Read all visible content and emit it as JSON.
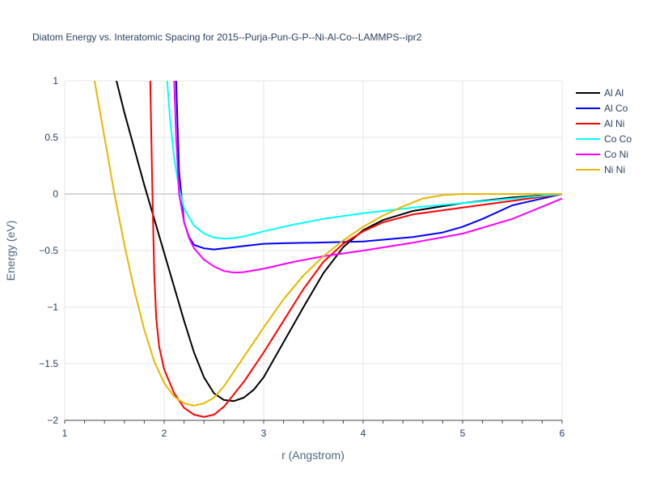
{
  "chart_data": {
    "type": "line",
    "title": "Diatom Energy vs. Interatomic Spacing for 2015--Purja-Pun-G-P--Ni-Al-Co--LAMMPS--ipr2",
    "xlabel": "r (Angstrom)",
    "ylabel": "Energy (eV)",
    "xlim": [
      1,
      6
    ],
    "ylim": [
      -2,
      1
    ],
    "xticks": [
      1,
      2,
      3,
      4,
      5,
      6
    ],
    "xtick_labels": [
      "1",
      "2",
      "3",
      "4",
      "5",
      "6"
    ],
    "yticks": [
      -2,
      -1.5,
      -1,
      -0.5,
      0,
      0.5,
      1
    ],
    "ytick_labels": [
      "−2",
      "−1.5",
      "−1",
      "−0.5",
      "0",
      "0.5",
      "1"
    ],
    "grid": true,
    "legend_position": "top-right",
    "series": [
      {
        "name": "Al Al",
        "color": "#000000",
        "x": [
          1.52,
          1.6,
          1.7,
          1.8,
          1.9,
          2.0,
          2.1,
          2.2,
          2.3,
          2.4,
          2.5,
          2.6,
          2.7,
          2.8,
          2.9,
          3.0,
          3.2,
          3.4,
          3.6,
          3.8,
          4.0,
          4.2,
          4.5,
          5.0,
          5.5,
          6.0
        ],
        "y": [
          1.0,
          0.72,
          0.4,
          0.08,
          -0.22,
          -0.52,
          -0.82,
          -1.12,
          -1.4,
          -1.62,
          -1.76,
          -1.82,
          -1.83,
          -1.8,
          -1.73,
          -1.62,
          -1.31,
          -1.0,
          -0.7,
          -0.47,
          -0.32,
          -0.23,
          -0.15,
          -0.08,
          -0.03,
          0.0
        ]
      },
      {
        "name": "Al Co",
        "color": "#0000ff",
        "x": [
          2.12,
          2.15,
          2.2,
          2.25,
          2.3,
          2.4,
          2.5,
          2.6,
          2.8,
          3.0,
          3.2,
          3.5,
          4.0,
          4.5,
          4.8,
          5.0,
          5.2,
          5.5,
          6.0
        ],
        "y": [
          1.0,
          0.2,
          -0.25,
          -0.38,
          -0.45,
          -0.48,
          -0.49,
          -0.48,
          -0.46,
          -0.44,
          -0.435,
          -0.43,
          -0.42,
          -0.38,
          -0.34,
          -0.29,
          -0.22,
          -0.1,
          0.0
        ]
      },
      {
        "name": "Al Ni",
        "color": "#ff0000",
        "x": [
          1.86,
          1.88,
          1.9,
          1.92,
          1.95,
          2.0,
          2.1,
          2.2,
          2.3,
          2.4,
          2.5,
          2.6,
          2.8,
          3.0,
          3.2,
          3.4,
          3.6,
          3.8,
          4.0,
          4.2,
          4.5,
          5.0,
          5.5,
          6.0
        ],
        "y": [
          1.0,
          0.1,
          -0.7,
          -1.1,
          -1.35,
          -1.55,
          -1.76,
          -1.89,
          -1.95,
          -1.97,
          -1.95,
          -1.88,
          -1.66,
          -1.4,
          -1.12,
          -0.84,
          -0.6,
          -0.44,
          -0.33,
          -0.25,
          -0.18,
          -0.12,
          -0.06,
          0.0
        ]
      },
      {
        "name": "Co Co",
        "color": "#00ffff",
        "x": [
          2.03,
          2.06,
          2.1,
          2.15,
          2.2,
          2.3,
          2.4,
          2.5,
          2.6,
          2.7,
          2.8,
          3.0,
          3.3,
          3.6,
          4.0,
          4.5,
          5.0,
          5.5,
          6.0
        ],
        "y": [
          1.0,
          0.65,
          0.32,
          0.05,
          -0.13,
          -0.28,
          -0.35,
          -0.385,
          -0.395,
          -0.39,
          -0.375,
          -0.33,
          -0.27,
          -0.22,
          -0.17,
          -0.12,
          -0.08,
          -0.04,
          0.0
        ]
      },
      {
        "name": "Co Ni",
        "color": "#ff00ff",
        "x": [
          2.1,
          2.12,
          2.15,
          2.2,
          2.25,
          2.3,
          2.4,
          2.5,
          2.6,
          2.7,
          2.8,
          3.0,
          3.3,
          3.6,
          4.0,
          4.5,
          5.0,
          5.5,
          6.0
        ],
        "y": [
          1.0,
          0.5,
          0.0,
          -0.25,
          -0.39,
          -0.48,
          -0.58,
          -0.64,
          -0.68,
          -0.695,
          -0.69,
          -0.66,
          -0.6,
          -0.55,
          -0.5,
          -0.43,
          -0.35,
          -0.22,
          -0.04
        ]
      },
      {
        "name": "Ni Ni",
        "color": "#e6b800",
        "x": [
          1.3,
          1.4,
          1.5,
          1.6,
          1.7,
          1.8,
          1.9,
          2.0,
          2.1,
          2.2,
          2.3,
          2.4,
          2.5,
          2.6,
          2.8,
          3.0,
          3.2,
          3.4,
          3.6,
          3.8,
          4.0,
          4.2,
          4.4,
          4.6,
          4.8,
          5.0,
          5.5,
          6.0
        ],
        "y": [
          1.0,
          0.5,
          0.0,
          -0.45,
          -0.85,
          -1.2,
          -1.48,
          -1.67,
          -1.79,
          -1.85,
          -1.87,
          -1.85,
          -1.8,
          -1.7,
          -1.44,
          -1.18,
          -0.93,
          -0.72,
          -0.55,
          -0.41,
          -0.29,
          -0.19,
          -0.11,
          -0.04,
          -0.01,
          0.0,
          0.0,
          0.0
        ]
      }
    ]
  }
}
